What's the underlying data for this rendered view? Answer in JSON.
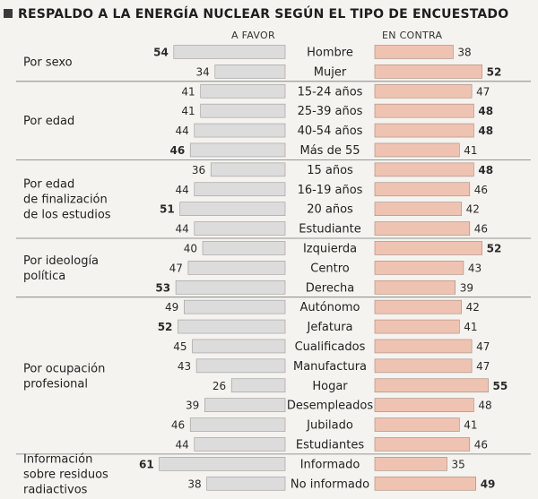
{
  "chart_data": {
    "type": "bar",
    "title": "RESPALDO A LA ENERGÍA NUCLEAR SEGÚN EL TIPO DE ENCUESTADO",
    "column_headers": {
      "favor": "A FAVOR",
      "contra": "EN CONTRA"
    },
    "colors": {
      "favor": "#dcdcdc",
      "contra": "#efc3b2"
    },
    "groups": [
      {
        "label_lines": [
          "Por sexo"
        ],
        "rows": [
          {
            "category": "Hombre",
            "favor": 54,
            "contra": 38
          },
          {
            "category": "Mujer",
            "favor": 34,
            "contra": 52
          }
        ]
      },
      {
        "label_lines": [
          "Por edad"
        ],
        "rows": [
          {
            "category": "15-24 años",
            "favor": 41,
            "contra": 47
          },
          {
            "category": "25-39 años",
            "favor": 41,
            "contra": 48
          },
          {
            "category": "40-54 años",
            "favor": 44,
            "contra": 48
          },
          {
            "category": "Más de 55",
            "favor": 46,
            "contra": 41
          }
        ]
      },
      {
        "label_lines": [
          "Por edad",
          "de finalización",
          "de los estudios"
        ],
        "rows": [
          {
            "category": "15 años",
            "favor": 36,
            "contra": 48
          },
          {
            "category": "16-19 años",
            "favor": 44,
            "contra": 46
          },
          {
            "category": "20 años",
            "favor": 51,
            "contra": 42
          },
          {
            "category": "Estudiante",
            "favor": 44,
            "contra": 46
          }
        ]
      },
      {
        "label_lines": [
          "Por ideología",
          "política"
        ],
        "rows": [
          {
            "category": "Izquierda",
            "favor": 40,
            "contra": 52
          },
          {
            "category": "Centro",
            "favor": 47,
            "contra": 43
          },
          {
            "category": "Derecha",
            "favor": 53,
            "contra": 39
          }
        ]
      },
      {
        "label_lines": [
          "Por ocupación",
          "profesional"
        ],
        "rows": [
          {
            "category": "Autónomo",
            "favor": 49,
            "contra": 42
          },
          {
            "category": "Jefatura",
            "favor": 52,
            "contra": 41
          },
          {
            "category": "Cualificados",
            "favor": 45,
            "contra": 47
          },
          {
            "category": "Manufactura",
            "favor": 43,
            "contra": 47
          },
          {
            "category": "Hogar",
            "favor": 26,
            "contra": 55
          },
          {
            "category": "Desempleados",
            "favor": 39,
            "contra": 48
          },
          {
            "category": "Jubilado",
            "favor": 46,
            "contra": 41
          },
          {
            "category": "Estudiantes",
            "favor": 44,
            "contra": 46
          }
        ]
      },
      {
        "label_lines": [
          "Información",
          "sobre residuos",
          "radiactivos"
        ],
        "rows": [
          {
            "category": "Informado",
            "favor": 61,
            "contra": 35
          },
          {
            "category": "No informado",
            "favor": 38,
            "contra": 49
          }
        ]
      }
    ]
  }
}
